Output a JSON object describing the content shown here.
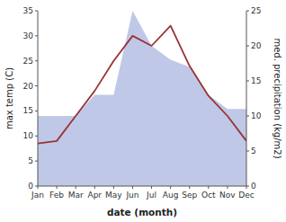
{
  "chart_data": {
    "type": "line",
    "xlabel": "date (month)",
    "ylabel": "max temp (C)",
    "y2label": "med. precipitation (kg/m2)",
    "categories": [
      "Jan",
      "Feb",
      "Mar",
      "Apr",
      "May",
      "Jun",
      "Jul",
      "Aug",
      "Sep",
      "Oct",
      "Nov",
      "Dec"
    ],
    "series": [
      {
        "type": "area",
        "axis": "y2",
        "color": "#c0c8e8",
        "values": [
          10.0,
          10.0,
          10.0,
          13.0,
          13.0,
          25.0,
          20.0,
          18.0,
          17.0,
          13.0,
          11.0,
          11.0
        ]
      },
      {
        "type": "line",
        "color": "#993333",
        "values": [
          8.5,
          9.0,
          14.0,
          19.0,
          25.0,
          30.0,
          28.0,
          32.0,
          24.0,
          18.0,
          14.0,
          9.0
        ]
      }
    ],
    "ylim": [
      0,
      35
    ],
    "yticks": [
      0,
      5,
      10,
      15,
      20,
      25,
      30,
      35
    ],
    "y2lim": [
      0,
      25
    ],
    "y2ticks": [
      0,
      5,
      10,
      15,
      20,
      25
    ],
    "grid": false
  }
}
